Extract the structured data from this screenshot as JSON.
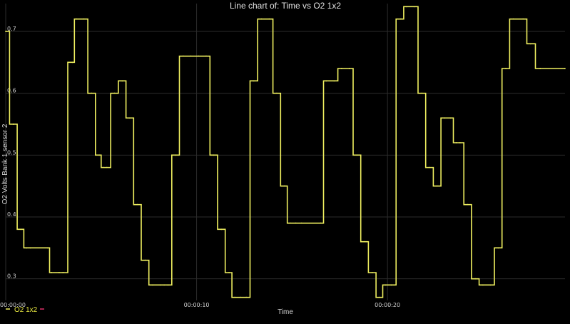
{
  "chart_data": {
    "type": "line",
    "title": "Line chart of: Time vs O2 1x2",
    "xlabel": "Time",
    "ylabel": "O2 Volts Bank 1 sensor 2",
    "x_tick_labels": [
      "00:00:00",
      "00:00:10",
      "00:00:20"
    ],
    "x_tick_values": [
      0,
      10,
      20
    ],
    "y_tick_labels": [
      "0.3",
      "0.4",
      "0.5",
      "0.6",
      "0.7"
    ],
    "y_tick_values": [
      0.3,
      0.4,
      0.5,
      0.6,
      0.7
    ],
    "xlim": [
      0,
      29.3
    ],
    "ylim": [
      0.265,
      0.745
    ],
    "grid": true,
    "legend_position": "bottom-left",
    "colors": {
      "series": "#f0f060",
      "background": "#000000",
      "grid": "#2c2c2c",
      "legend_marker_2": "#e0306a"
    },
    "series": [
      {
        "name": "O2 1x2",
        "x": [
          0,
          0.4,
          0.8,
          1.1,
          1.3,
          2.2,
          2.4,
          2.8,
          3.0,
          3.5,
          3.7,
          4.1,
          4.5,
          4.9,
          5.1,
          5.3,
          5.7,
          6.1,
          6.5,
          6.9,
          7.3,
          7.7,
          8.1,
          8.3,
          8.5,
          8.9,
          9.3,
          9.7,
          10.1,
          10.5,
          10.9,
          11.3,
          11.7,
          12.0,
          12.3,
          12.6,
          13.0,
          13.4,
          13.8,
          14.2,
          14.6,
          14.9,
          15.2,
          15.5,
          16.5,
          16.8,
          17.2,
          17.6,
          18.0,
          18.4,
          18.8,
          19.2,
          19.6,
          19.9,
          20.2,
          20.7,
          21.0,
          21.4,
          21.8,
          22.2,
          22.6,
          23.0,
          23.3,
          23.6,
          23.8,
          24.2,
          24.6,
          25.0,
          25.4,
          25.8,
          26.2,
          26.6,
          27.1,
          27.5,
          28.0,
          29.3
        ],
        "y": [
          0.7,
          0.55,
          0.38,
          0.35,
          0.35,
          0.35,
          0.31,
          0.31,
          0.31,
          0.65,
          0.72,
          0.72,
          0.6,
          0.5,
          0.48,
          0.48,
          0.6,
          0.62,
          0.56,
          0.42,
          0.33,
          0.29,
          0.29,
          0.29,
          0.29,
          0.5,
          0.66,
          0.66,
          0.66,
          0.66,
          0.5,
          0.38,
          0.31,
          0.27,
          0.27,
          0.27,
          0.62,
          0.72,
          0.72,
          0.6,
          0.45,
          0.39,
          0.39,
          0.39,
          0.39,
          0.62,
          0.62,
          0.64,
          0.64,
          0.5,
          0.36,
          0.31,
          0.27,
          0.29,
          0.29,
          0.72,
          0.74,
          0.74,
          0.6,
          0.48,
          0.45,
          0.56,
          0.56,
          0.52,
          0.52,
          0.42,
          0.3,
          0.29,
          0.29,
          0.35,
          0.64,
          0.72,
          0.72,
          0.68,
          0.64,
          0.64
        ]
      }
    ]
  }
}
